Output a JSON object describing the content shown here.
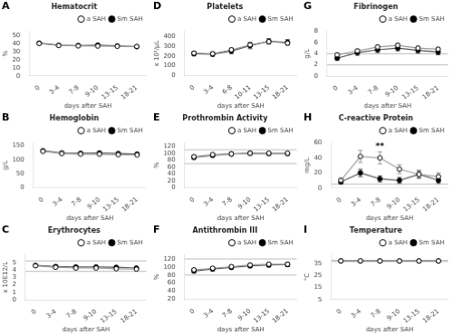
{
  "chart_data": [
    {
      "panel": "A",
      "type": "line",
      "title": "Hematocrit",
      "x_label": "days after SAH",
      "y_label": "%",
      "categories": [
        "0",
        "3-4",
        "7-8",
        "9-10",
        "13-15",
        "18-21"
      ],
      "series": [
        {
          "name": "a SAH",
          "color": "#999999",
          "marker": "open_circle",
          "values": [
            40.0,
            37.5,
            37.0,
            36.8,
            36.5,
            36.3
          ],
          "error": [
            0.8,
            0.7,
            0.7,
            0.7,
            0.7,
            0.7
          ]
        },
        {
          "name": "Sm SAH",
          "color": "#555555",
          "marker": "filled_circle",
          "values": [
            40.5,
            37.8,
            37.5,
            38.0,
            37.0,
            36.0
          ],
          "error": [
            1.2,
            1.5,
            1.2,
            1.2,
            1.2,
            1.2
          ]
        }
      ],
      "ylim": [
        0,
        55
      ],
      "yticks": [
        0,
        10,
        20,
        30,
        40,
        50
      ],
      "grid": false,
      "legend": "upper right"
    },
    {
      "panel": "B",
      "type": "line",
      "title": "Hemoglobin",
      "x_label": "days after SAH",
      "y_label": "g/L",
      "categories": [
        "0",
        "3-4",
        "7-8",
        "9-10",
        "13-15",
        "18-21"
      ],
      "series": [
        {
          "name": "a SAH",
          "color": "#999999",
          "marker": "open_circle",
          "values": [
            130,
            122,
            120,
            120,
            118,
            117
          ],
          "error": [
            3,
            3,
            2.5,
            2.5,
            2.5,
            2.5
          ]
        },
        {
          "name": "Sm SAH",
          "color": "#555555",
          "marker": "filled_circle",
          "values": [
            132,
            124,
            123,
            124,
            122,
            120
          ],
          "error": [
            4,
            5,
            4,
            4,
            4,
            4
          ]
        }
      ],
      "ylim": [
        0,
        160
      ],
      "yticks": [
        0,
        50,
        100,
        150
      ],
      "grid": false,
      "legend": "upper right"
    },
    {
      "panel": "C",
      "type": "line",
      "title": "Erythrocytes",
      "x_label": "days after SAH",
      "y_label": "x 10E12/L",
      "categories": [
        "0",
        "3-4",
        "7-8",
        "9-10",
        "13-15",
        "18-21"
      ],
      "series": [
        {
          "name": "a SAH",
          "color": "#999999",
          "marker": "open_circle",
          "values": [
            4.55,
            4.35,
            4.25,
            4.25,
            4.15,
            4.1
          ],
          "error": [
            0.1,
            0.1,
            0.1,
            0.1,
            0.1,
            0.1
          ]
        },
        {
          "name": "Sm SAH",
          "color": "#555555",
          "marker": "filled_circle",
          "values": [
            4.6,
            4.45,
            4.4,
            4.4,
            4.35,
            4.25
          ],
          "error": [
            0.15,
            0.2,
            0.15,
            0.15,
            0.15,
            0.15
          ]
        }
      ],
      "ylim": [
        0,
        6
      ],
      "yticks": [
        0,
        1,
        2,
        3,
        4,
        5
      ],
      "ref_lines": {
        "values": [
          3.8,
          5.2
        ],
        "color": "#bbbbbb"
      },
      "grid": false,
      "legend": "upper right"
    },
    {
      "panel": "D",
      "type": "line",
      "title": "Platelets",
      "x_label": "days after SAH",
      "y_label": "x 10³/μL",
      "categories": [
        "0",
        "3-4",
        "6-8",
        "10-11",
        "13-15",
        "18-21"
      ],
      "series": [
        {
          "name": "a SAH",
          "color": "#999999",
          "marker": "open_circle",
          "values": [
            228,
            222,
            262,
            312,
            345,
            330
          ],
          "error": [
            12,
            12,
            16,
            18,
            18,
            18
          ]
        },
        {
          "name": "Sm SAH",
          "color": "#555555",
          "marker": "filled_circle",
          "values": [
            222,
            218,
            250,
            305,
            348,
            338
          ],
          "error": [
            22,
            22,
            28,
            32,
            28,
            28
          ]
        }
      ],
      "ylim": [
        0,
        450
      ],
      "yticks": [
        0,
        100,
        200,
        300,
        400
      ],
      "grid": false,
      "legend": "upper right"
    },
    {
      "panel": "E",
      "type": "line",
      "title": "Prothrombin Activity",
      "x_label": "days after SAH",
      "y_label": "%",
      "categories": [
        "0",
        "3-4",
        "7-8",
        "9-10",
        "13-15",
        "18-21"
      ],
      "series": [
        {
          "name": "a SAH",
          "color": "#999999",
          "marker": "open_circle",
          "values": [
            90,
            96,
            98,
            100,
            100,
            100
          ],
          "error": [
            4,
            3,
            3,
            3,
            3,
            3
          ]
        },
        {
          "name": "Sm SAH",
          "color": "#555555",
          "marker": "filled_circle",
          "values": [
            88,
            94,
            98,
            100,
            99,
            99
          ],
          "error": [
            6,
            5,
            5,
            4,
            4,
            4
          ]
        }
      ],
      "ylim": [
        0,
        130
      ],
      "yticks": [
        0,
        20,
        40,
        60,
        80,
        100,
        120
      ],
      "ref_lines": {
        "values": [
          70,
          110
        ],
        "color": "#bbbbbb"
      },
      "grid": false,
      "legend": "upper right"
    },
    {
      "panel": "F",
      "type": "line",
      "title": "Antithrombin III",
      "x_label": "days after SAH",
      "y_label": "%",
      "categories": [
        "0",
        "3-4",
        "7-8",
        "9-10",
        "13-15",
        "18-21"
      ],
      "series": [
        {
          "name": "a SAH",
          "color": "#999999",
          "marker": "open_circle",
          "values": [
            93,
            97,
            101,
            105,
            107,
            107
          ],
          "error": [
            3,
            3,
            3,
            3,
            3,
            3
          ]
        },
        {
          "name": "Sm SAH",
          "color": "#555555",
          "marker": "filled_circle",
          "values": [
            90,
            95,
            99,
            103,
            105,
            106
          ],
          "error": [
            5,
            5,
            5,
            5,
            5,
            5
          ]
        }
      ],
      "ylim": [
        20,
        130
      ],
      "yticks": [
        20,
        40,
        60,
        80,
        100,
        120
      ],
      "ref_lines": {
        "values": [
          80,
          120
        ],
        "color": "#bbbbbb"
      },
      "grid": false,
      "legend": "upper right"
    },
    {
      "panel": "G",
      "type": "line",
      "title": "Fibrinogen",
      "x_label": "days after SAH",
      "y_label": "g/L",
      "categories": [
        "0",
        "3-4",
        "7-8",
        "9-10",
        "13-15",
        "18-21"
      ],
      "series": [
        {
          "name": "a SAH",
          "color": "#999999",
          "marker": "open_circle",
          "values": [
            3.8,
            4.5,
            5.2,
            5.5,
            5.0,
            4.8
          ],
          "error": [
            0.3,
            0.3,
            0.3,
            0.35,
            0.35,
            0.35
          ]
        },
        {
          "name": "Sm SAH",
          "color": "#555555",
          "marker": "filled_circle",
          "values": [
            3.2,
            4.2,
            4.7,
            5.0,
            4.6,
            4.3
          ],
          "error": [
            0.4,
            0.5,
            0.5,
            0.5,
            0.5,
            0.5
          ]
        }
      ],
      "ylim": [
        0,
        8
      ],
      "yticks": [
        0,
        2,
        4,
        6,
        8
      ],
      "ref_lines": {
        "values": [
          2.0,
          4.0
        ],
        "color": "#bbbbbb"
      },
      "grid": false,
      "legend": "upper right"
    },
    {
      "panel": "H",
      "type": "line",
      "title": "C-reactive Protein",
      "x_label": "days after SAH",
      "y_label": "mg/L",
      "categories": [
        "0",
        "3-4",
        "7-8",
        "9-10",
        "13-15",
        "18-21"
      ],
      "series": [
        {
          "name": "a SAH",
          "color": "#999999",
          "marker": "open_circle",
          "values": [
            10,
            42,
            40,
            25,
            18,
            15
          ],
          "error": [
            3,
            8,
            8,
            6,
            5,
            5
          ]
        },
        {
          "name": "Sm SAH",
          "color": "#555555",
          "marker": "filled_circle",
          "values": [
            8,
            20,
            12,
            10,
            18,
            10
          ],
          "error": [
            3,
            5,
            4,
            4,
            5,
            4
          ]
        }
      ],
      "ylim": [
        0,
        60
      ],
      "yticks": [
        0,
        20,
        40,
        60
      ],
      "ref_lines": {
        "values": [
          5.0
        ],
        "color": "#bbbbbb"
      },
      "annotations": [
        {
          "text": "**",
          "x": "7-8",
          "y": 50
        }
      ],
      "grid": false,
      "legend": "upper right"
    },
    {
      "panel": "I",
      "type": "line",
      "title": "Temperature",
      "x_label": "days after SAH",
      "y_label": "°C",
      "categories": [
        "0",
        "3-4",
        "7-8",
        "9-10",
        "13-15",
        "18-21"
      ],
      "series": [
        {
          "name": "a SAH",
          "color": "#999999",
          "marker": "open_circle",
          "values": [
            37.0,
            37.1,
            37.0,
            37.0,
            37.0,
            37.0
          ],
          "error": [
            0.15,
            0.15,
            0.1,
            0.1,
            0.1,
            0.1
          ]
        },
        {
          "name": "Sm SAH",
          "color": "#555555",
          "marker": "filled_circle",
          "values": [
            37.0,
            37.0,
            37.0,
            37.0,
            37.0,
            37.0
          ],
          "error": [
            0.2,
            0.2,
            0.15,
            0.15,
            0.15,
            0.15
          ]
        }
      ],
      "ylim": [
        5,
        42
      ],
      "yticks": [
        5,
        15,
        25,
        35
      ],
      "ref_lines": {
        "values": [
          36.5,
          37.5
        ],
        "color": "#bbbbbb"
      },
      "grid": false,
      "legend": "upper right"
    }
  ]
}
